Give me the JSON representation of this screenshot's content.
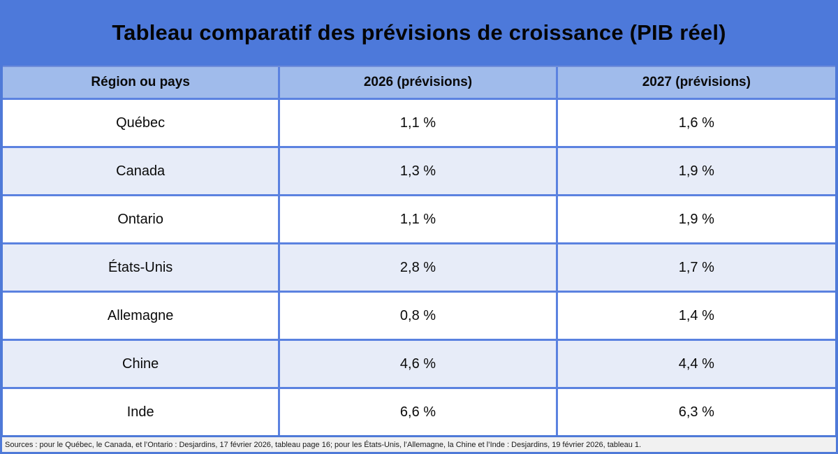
{
  "title": "Tableau comparatif des prévisions de croissance (PIB réel)",
  "footer": {
    "sources": "Sources : pour le Québec, le Canada, et l’Ontario : Desjardins, 17 février 2026, tableau page 16; pour les États-Unis, l’Allemagne, la Chine et l’Inde : Desjardins, 19 février 2026, tableau 1."
  },
  "colors": {
    "banner_blue": "#4d79da",
    "header_blue": "#a0bbeb",
    "row_alt": "#e7ecf8",
    "border_blue": "#5b82e0",
    "outer_blue": "#4f7ad8",
    "footer_bg": "#f1f1f1",
    "text": "#0a0a0a"
  },
  "chart_data": {
    "type": "table",
    "title": "Tableau comparatif des prévisions de croissance (PIB réel)",
    "columns": [
      "Région ou pays",
      "2026 (prévisions)",
      "2027 (prévisions)"
    ],
    "rows": [
      [
        "Québec",
        "1,1 %",
        "1,6 %"
      ],
      [
        "Canada",
        "1,3 %",
        "1,9 %"
      ],
      [
        "Ontario",
        "1,1 %",
        "1,9 %"
      ],
      [
        "États-Unis",
        "2,8 %",
        "1,7 %"
      ],
      [
        "Allemagne",
        "0,8 %",
        "1,4 %"
      ],
      [
        "Chine",
        "4,6 %",
        "4,4 %"
      ],
      [
        "Inde",
        "6,6 %",
        "6,3 %"
      ]
    ],
    "values_2026_pct": [
      1.1,
      1.3,
      1.1,
      2.8,
      0.8,
      4.6,
      6.6
    ],
    "values_2027_pct": [
      1.6,
      1.9,
      1.9,
      1.7,
      1.4,
      4.4,
      6.3
    ],
    "row_shading": "alternating, odd rows (Canada, États-Unis, Chine) shaded light blue"
  }
}
